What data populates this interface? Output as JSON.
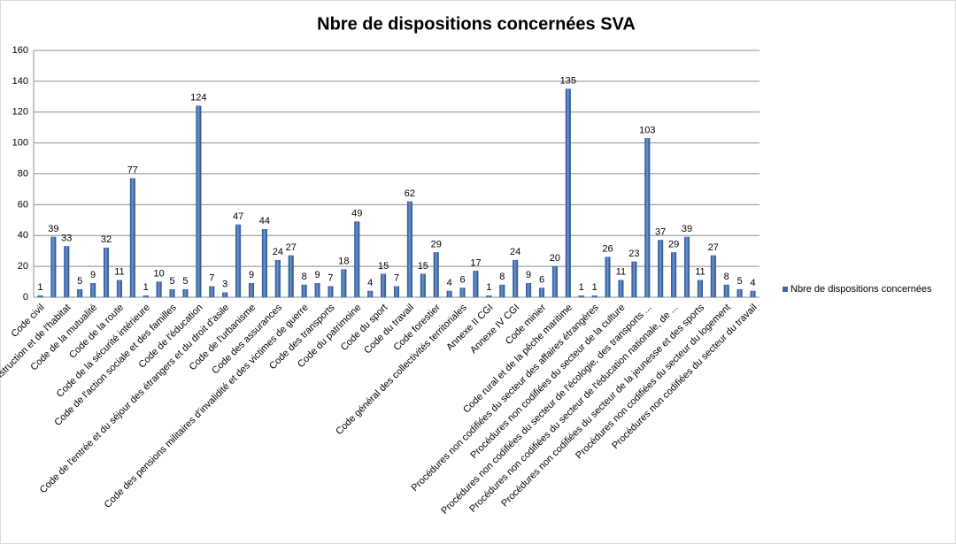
{
  "chart_data": {
    "type": "bar",
    "title": "Nbre de dispositions concernées SVA",
    "categories": [
      "Code civil",
      null,
      "Code de la construction et de l'habitat",
      null,
      "Code de la mutualité",
      null,
      "Code de la route",
      null,
      "Code de la sécurité intérieure",
      null,
      "Code de l'action sociale et des familles",
      null,
      "Code de l'éducation",
      null,
      "Code de l'entrée et du séjour des étrangers et du droit d'asile",
      null,
      "Code de l'urbanisme",
      null,
      "Code des assurances",
      null,
      "Code des pensions militaires d'invalidité et des victimes de guerre",
      null,
      "Code des transports",
      null,
      "Code du patrimoine",
      null,
      "Code du sport",
      null,
      "Code du travail",
      null,
      "Code forestier",
      null,
      "Code général des collectivités territoriales",
      null,
      "Annexe II CGI",
      null,
      "Annexe IV CGI",
      null,
      "Code minier",
      null,
      "Code rural et de la pêche maritime",
      null,
      "Procédures non codifiées du secteur des affaires étrangères",
      null,
      "Procédures non codifiées du secteur de la culture",
      null,
      "Procédures non codifiées du secteur de l'écologie, des transports ...",
      null,
      "Procédures non codifiées du secteur de l'éducation nationale, de ...",
      null,
      "Procédures non codifiées du secteur de la jeunesse et des sports",
      null,
      "Procédures non codifiées du secteur du logement",
      null,
      "Procédures non codifiées du secteur du travail"
    ],
    "series": [
      {
        "name": "Nbre de dispositions concernées",
        "color": "#3b67ad",
        "values": [
          1,
          39,
          33,
          5,
          9,
          32,
          11,
          77,
          1,
          10,
          5,
          5,
          124,
          7,
          3,
          47,
          9,
          44,
          24,
          27,
          8,
          9,
          7,
          18,
          49,
          4,
          15,
          7,
          62,
          15,
          29,
          4,
          6,
          17,
          1,
          8,
          24,
          9,
          6,
          20,
          135,
          1,
          1,
          26,
          11,
          23,
          103,
          37,
          29,
          39,
          11,
          27,
          8,
          5,
          4
        ]
      }
    ],
    "ylim": [
      0,
      160
    ],
    "yticks": [
      0,
      20,
      40,
      60,
      80,
      100,
      120,
      140,
      160
    ],
    "grid": true,
    "legend": "right"
  }
}
